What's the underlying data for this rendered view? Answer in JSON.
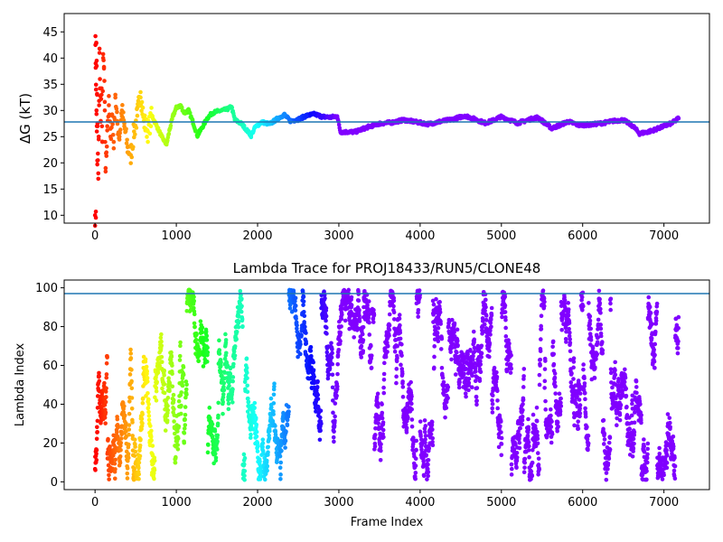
{
  "chart_data": [
    {
      "type": "scatter",
      "title": "",
      "xlabel": "",
      "ylabel": "ΔG (kT)",
      "xlim": [
        -380,
        7560
      ],
      "ylim": [
        8.5,
        48.5
      ],
      "xticks": [
        0,
        1000,
        2000,
        3000,
        4000,
        5000,
        6000,
        7000
      ],
      "yticks": [
        10,
        15,
        20,
        25,
        30,
        35,
        40,
        45
      ],
      "reference_line_y": 27.8,
      "reference_line_color": "#1f77b4",
      "colormap": "rainbow (red at frame 0 to violet at frame ~3000, violet thereafter)",
      "series": [
        {
          "points": [
            [
              0,
              10.0
            ],
            [
              10,
              10.7
            ],
            [
              5,
              42.5
            ],
            [
              15,
              42.8
            ],
            [
              8,
              39.0
            ],
            [
              20,
              38.5
            ],
            [
              12,
              34.0
            ],
            [
              25,
              33.0
            ],
            [
              18,
              30.0
            ],
            [
              30,
              27.0
            ],
            [
              22,
              26.0
            ],
            [
              35,
              20.5
            ],
            [
              28,
              19.7
            ],
            [
              40,
              18.0
            ],
            [
              45,
              25.0
            ],
            [
              50,
              31.0
            ],
            [
              55,
              41.0
            ],
            [
              60,
              36.0
            ],
            [
              70,
              28.0
            ],
            [
              80,
              33.0
            ],
            [
              90,
              24.0
            ],
            [
              100,
              40.0
            ],
            [
              110,
              38.0
            ],
            [
              120,
              30.0
            ],
            [
              130,
              19.0
            ],
            [
              140,
              22.0
            ],
            [
              150,
              27.0
            ],
            [
              170,
              31.0
            ],
            [
              190,
              25.0
            ],
            [
              210,
              29.0
            ],
            [
              230,
              24.0
            ],
            [
              250,
              33.0
            ],
            [
              270,
              28.0
            ],
            [
              300,
              25.0
            ],
            [
              330,
              30.0
            ],
            [
              360,
              27.0
            ],
            [
              400,
              23.0
            ],
            [
              440,
              21.5
            ],
            [
              480,
              26.0
            ],
            [
              520,
              29.0
            ],
            [
              560,
              33.5
            ],
            [
              600,
              28.0
            ],
            [
              650,
              26.0
            ],
            [
              700,
              29.0
            ],
            [
              760,
              27.0
            ],
            [
              820,
              25.0
            ],
            [
              880,
              23.5
            ],
            [
              920,
              26.5
            ],
            [
              960,
              29.0
            ],
            [
              1000,
              30.5
            ],
            [
              1050,
              31.0
            ],
            [
              1100,
              29.5
            ],
            [
              1150,
              30.0
            ],
            [
              1200,
              28.0
            ],
            [
              1260,
              25.2
            ],
            [
              1320,
              26.8
            ],
            [
              1380,
              28.5
            ],
            [
              1440,
              29.5
            ],
            [
              1500,
              29.8
            ],
            [
              1560,
              30.0
            ],
            [
              1620,
              30.2
            ],
            [
              1680,
              30.7
            ],
            [
              1720,
              28.2
            ],
            [
              1800,
              27.5
            ],
            [
              1870,
              26.2
            ],
            [
              1920,
              25.2
            ],
            [
              1970,
              26.8
            ],
            [
              2050,
              27.8
            ],
            [
              2150,
              27.4
            ],
            [
              2250,
              28.5
            ],
            [
              2330,
              29.2
            ],
            [
              2400,
              28.0
            ],
            [
              2500,
              28.3
            ],
            [
              2600,
              29.0
            ],
            [
              2700,
              29.3
            ],
            [
              2800,
              28.8
            ],
            [
              2900,
              28.7
            ],
            [
              2980,
              28.9
            ],
            [
              3020,
              25.9
            ],
            [
              3200,
              25.9
            ],
            [
              3350,
              26.8
            ],
            [
              3500,
              27.5
            ],
            [
              3650,
              27.7
            ],
            [
              3800,
              28.2
            ],
            [
              3950,
              27.8
            ],
            [
              4100,
              27.4
            ],
            [
              4250,
              27.9
            ],
            [
              4400,
              28.3
            ],
            [
              4550,
              29.0
            ],
            [
              4700,
              28.2
            ],
            [
              4800,
              27.6
            ],
            [
              4900,
              28.1
            ],
            [
              4990,
              28.8
            ],
            [
              5100,
              28.2
            ],
            [
              5200,
              27.6
            ],
            [
              5350,
              28.3
            ],
            [
              5450,
              28.7
            ],
            [
              5550,
              27.4
            ],
            [
              5620,
              26.6
            ],
            [
              5720,
              27.2
            ],
            [
              5820,
              27.9
            ],
            [
              5950,
              27.2
            ],
            [
              6100,
              27.3
            ],
            [
              6250,
              27.6
            ],
            [
              6380,
              28.0
            ],
            [
              6500,
              28.2
            ],
            [
              6620,
              27.0
            ],
            [
              6700,
              25.6
            ],
            [
              6800,
              25.9
            ],
            [
              6900,
              26.4
            ],
            [
              7000,
              27.0
            ],
            [
              7100,
              27.6
            ],
            [
              7180,
              28.5
            ]
          ]
        }
      ]
    },
    {
      "type": "scatter",
      "title": "Lambda Trace for PROJ18433/RUN5/CLONE48",
      "xlabel": "Frame Index",
      "ylabel": "Lambda Index",
      "xlim": [
        -380,
        7560
      ],
      "ylim": [
        -4,
        104
      ],
      "xticks": [
        0,
        1000,
        2000,
        3000,
        4000,
        5000,
        6000,
        7000
      ],
      "yticks": [
        0,
        20,
        40,
        60,
        80,
        100
      ],
      "reference_line_y": 97,
      "reference_line_color": "#1f77b4",
      "colormap": "rainbow (red at frame 0 to violet at frame ~3000, violet thereafter)",
      "lambda_range": [
        1,
        99
      ],
      "frame_range": [
        0,
        7180
      ],
      "note_points": "dense scatter of ~7200 frames spanning the full lambda range, with vertical stripe structure"
    }
  ]
}
